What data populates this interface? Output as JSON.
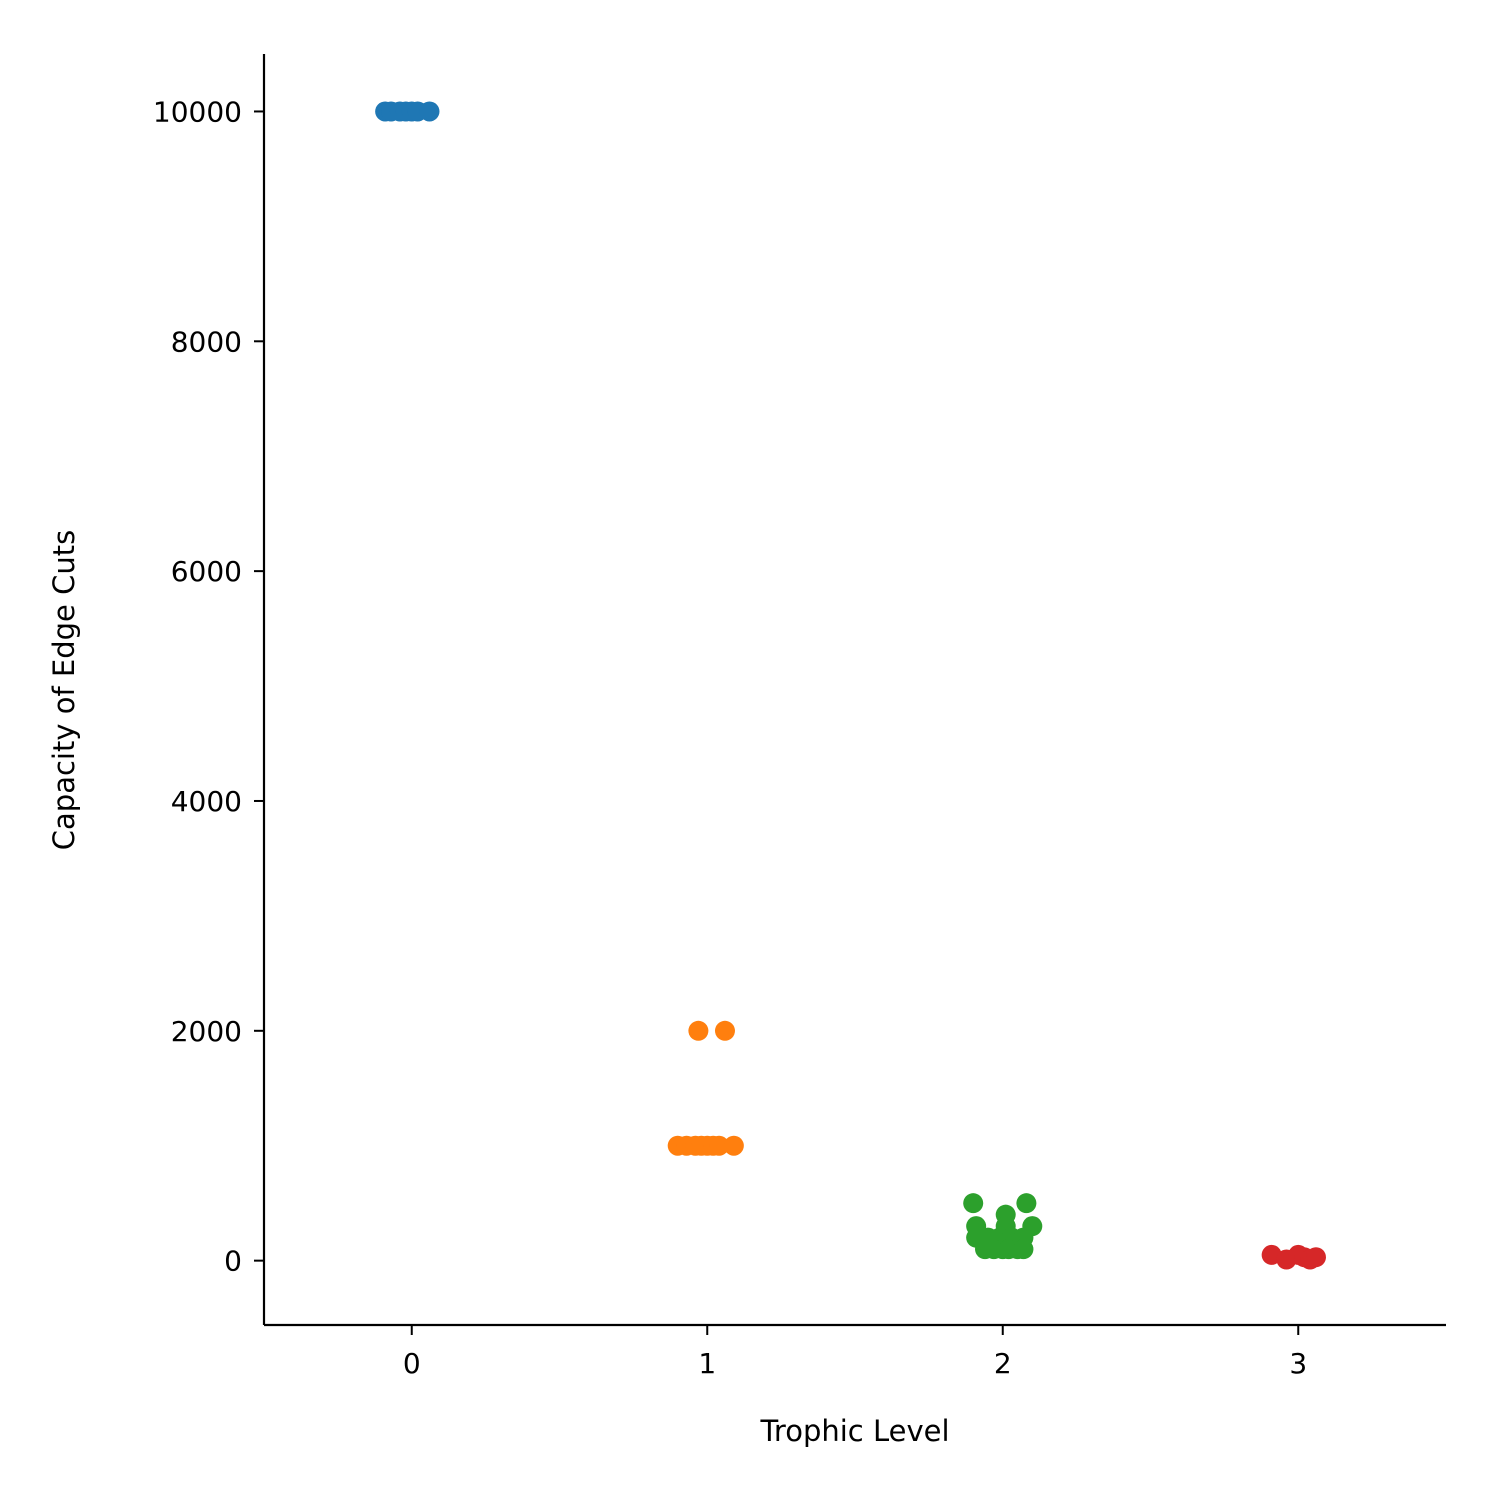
{
  "chart_data": {
    "type": "scatter",
    "title": "",
    "xlabel": "Trophic Level",
    "ylabel": "Capacity of Edge Cuts",
    "xlim": [
      -0.5,
      3.5
    ],
    "ylim": [
      -560,
      10500
    ],
    "x_ticks": [
      0,
      1,
      2,
      3
    ],
    "y_ticks": [
      0,
      2000,
      4000,
      6000,
      8000,
      10000
    ],
    "grid": false,
    "legend": "none",
    "series": [
      {
        "color": "#1f77b4",
        "points": [
          [
            -0.09,
            10000
          ],
          [
            -0.07,
            10000
          ],
          [
            -0.04,
            10000
          ],
          [
            -0.02,
            10000
          ],
          [
            0.0,
            10000
          ],
          [
            0.02,
            10000
          ],
          [
            0.06,
            10000
          ]
        ]
      },
      {
        "color": "#ff7f0e",
        "points": [
          [
            0.97,
            2000
          ],
          [
            1.06,
            2000
          ],
          [
            0.9,
            1000
          ],
          [
            0.93,
            1000
          ],
          [
            0.96,
            1000
          ],
          [
            0.98,
            1000
          ],
          [
            1.0,
            1000
          ],
          [
            1.02,
            1000
          ],
          [
            1.04,
            1000
          ],
          [
            1.09,
            1000
          ]
        ]
      },
      {
        "color": "#2ca02c",
        "points": [
          [
            1.9,
            500
          ],
          [
            2.08,
            500
          ],
          [
            2.01,
            400
          ],
          [
            1.91,
            300
          ],
          [
            2.01,
            300
          ],
          [
            2.1,
            300
          ],
          [
            1.91,
            200
          ],
          [
            1.95,
            200
          ],
          [
            1.99,
            200
          ],
          [
            2.03,
            200
          ],
          [
            2.07,
            200
          ],
          [
            1.94,
            100
          ],
          [
            1.97,
            100
          ],
          [
            2.0,
            100
          ],
          [
            2.02,
            100
          ],
          [
            2.05,
            100
          ],
          [
            2.07,
            100
          ]
        ]
      },
      {
        "color": "#d62728",
        "points": [
          [
            2.91,
            50
          ],
          [
            2.96,
            10
          ],
          [
            3.0,
            50
          ],
          [
            3.02,
            30
          ],
          [
            3.04,
            10
          ],
          [
            3.06,
            30
          ]
        ]
      }
    ]
  }
}
